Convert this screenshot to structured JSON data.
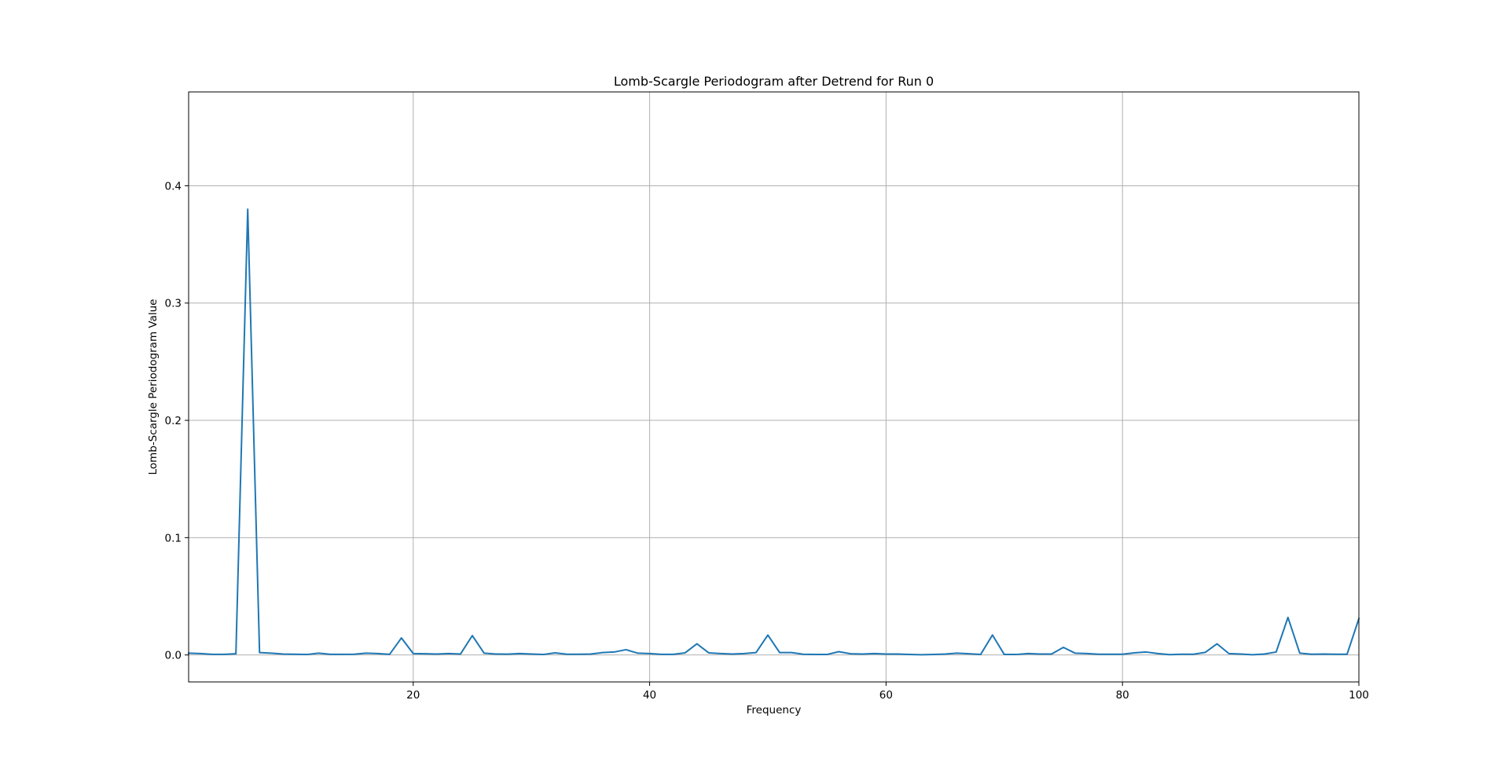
{
  "chart_data": {
    "type": "line",
    "title": "Lomb-Scargle Periodogram after Detrend for Run 0",
    "xlabel": "Frequency",
    "ylabel": "Lomb-Scargle Periodogram Value",
    "xlim": [
      1,
      100
    ],
    "ylim": [
      -0.023,
      0.48
    ],
    "xticks": [
      20,
      40,
      60,
      80,
      100
    ],
    "xtick_labels": [
      "20",
      "40",
      "60",
      "80",
      "100"
    ],
    "yticks": [
      0.0,
      0.1,
      0.2,
      0.3,
      0.4
    ],
    "ytick_labels": [
      "0.0",
      "0.1",
      "0.2",
      "0.3",
      "0.4"
    ],
    "grid": true,
    "line_color": "#1f77b4",
    "series": [
      {
        "x": [
          1,
          2,
          3,
          4,
          5,
          6,
          7,
          8,
          9,
          10,
          11,
          12,
          13,
          14,
          15,
          16,
          17,
          18,
          19,
          20,
          21,
          22,
          23,
          24,
          25,
          26,
          27,
          28,
          29,
          30,
          31,
          32,
          33,
          34,
          35,
          36,
          37,
          38,
          39,
          40,
          41,
          42,
          43,
          44,
          45,
          46,
          47,
          48,
          49,
          50,
          51,
          52,
          53,
          54,
          55,
          56,
          57,
          58,
          59,
          60,
          61,
          62,
          63,
          64,
          65,
          66,
          67,
          68,
          69,
          70,
          71,
          72,
          73,
          74,
          75,
          76,
          77,
          78,
          79,
          80,
          81,
          82,
          83,
          84,
          85,
          86,
          87,
          88,
          89,
          90,
          91,
          92,
          93,
          94,
          95,
          96,
          97,
          98,
          99,
          100
        ],
        "values": [
          0.0015,
          0.0012,
          0.0005,
          0.0005,
          0.001,
          0.38,
          0.002,
          0.0015,
          0.0008,
          0.0006,
          0.0004,
          0.0015,
          0.0005,
          0.0005,
          0.0006,
          0.0015,
          0.0012,
          0.0005,
          0.0145,
          0.0012,
          0.001,
          0.0008,
          0.0012,
          0.0008,
          0.0165,
          0.0015,
          0.0008,
          0.0007,
          0.0012,
          0.0008,
          0.0004,
          0.0018,
          0.0006,
          0.0006,
          0.0008,
          0.002,
          0.0025,
          0.0045,
          0.0015,
          0.0012,
          0.0005,
          0.0005,
          0.0018,
          0.0095,
          0.0018,
          0.0012,
          0.0008,
          0.0012,
          0.002,
          0.017,
          0.002,
          0.002,
          0.0006,
          0.0004,
          0.0004,
          0.0028,
          0.001,
          0.0008,
          0.0012,
          0.0008,
          0.0008,
          0.0004,
          0.0002,
          0.0004,
          0.0008,
          0.0015,
          0.001,
          0.0004,
          0.017,
          0.0004,
          0.0004,
          0.0012,
          0.0008,
          0.0008,
          0.0065,
          0.0015,
          0.0012,
          0.0006,
          0.0006,
          0.0006,
          0.0018,
          0.0025,
          0.0012,
          0.0003,
          0.0006,
          0.0006,
          0.0022,
          0.0095,
          0.0012,
          0.0008,
          0.0002,
          0.0008,
          0.0025,
          0.032,
          0.0015,
          0.0006,
          0.0008,
          0.0006,
          0.0006,
          0.031
        ]
      }
    ]
  }
}
